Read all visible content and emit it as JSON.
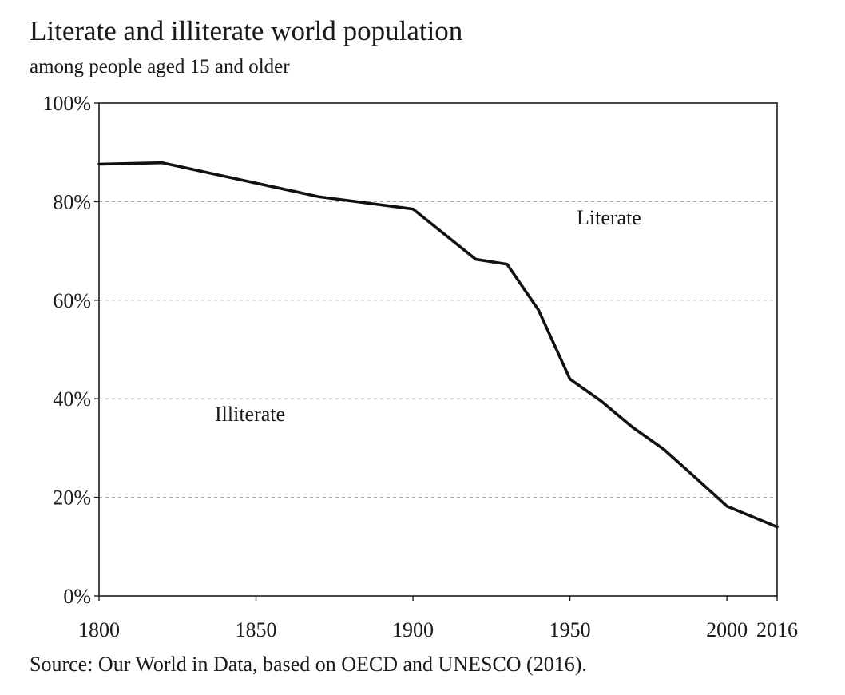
{
  "chart_data": {
    "type": "line",
    "title": "Literate and illiterate world population",
    "subtitle": "among people aged 15 and older",
    "xlabel": "",
    "ylabel": "",
    "xlim": [
      1800,
      2016
    ],
    "ylim": [
      0,
      100
    ],
    "x_ticks": [
      1800,
      1850,
      1900,
      1950,
      2000,
      2016
    ],
    "y_ticks": [
      0,
      20,
      40,
      60,
      80,
      100
    ],
    "y_tick_labels": [
      "0%",
      "20%",
      "40%",
      "60%",
      "80%",
      "100%"
    ],
    "grid": true,
    "series": [
      {
        "name": "Illiterate share",
        "x": [
          1800,
          1820,
          1870,
          1900,
          1920,
          1930,
          1940,
          1950,
          1960,
          1970,
          1980,
          1990,
          2000,
          2016
        ],
        "values": [
          87.6,
          87.9,
          81.0,
          78.5,
          68.3,
          67.3,
          58.0,
          44.0,
          39.5,
          34.2,
          29.7,
          24.0,
          18.2,
          14.0
        ]
      }
    ],
    "annotations": {
      "upper_region": "Literate",
      "lower_region": "Illiterate"
    },
    "source": "Source: Our World in Data, based on OECD and UNESCO (2016).",
    "colors": {
      "line": "#111111",
      "grid": "#a8a8a8"
    }
  }
}
